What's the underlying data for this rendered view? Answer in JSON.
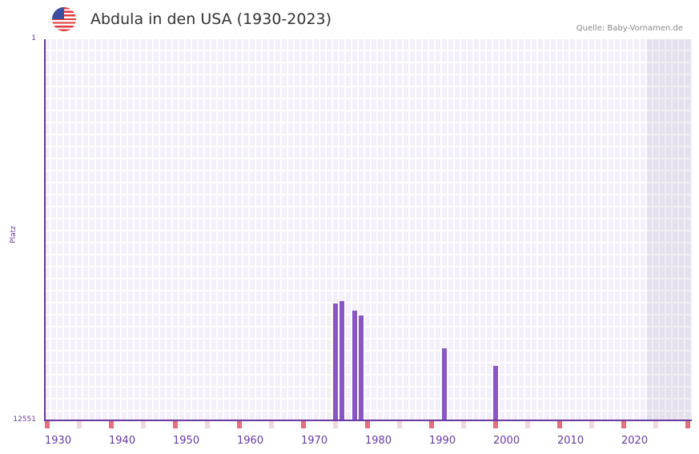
{
  "header": {
    "title": "Abdula in den USA (1930-2023)",
    "source": "Quelle: Baby-Vornamen.de",
    "flag_icon": "usa-flag-icon"
  },
  "colors": {
    "bar": "#8a55c6",
    "axis": "#6a3aa0",
    "decade_marker": "#e0707a",
    "half_decade_marker": "#f3d7e0",
    "grid_bg": "#f3effb"
  },
  "chart_data": {
    "type": "bar",
    "title": "Abdula in den USA (1930-2023)",
    "xlabel": "",
    "ylabel": "Platz",
    "y_inverted": true,
    "ylim": [
      12551,
      1
    ],
    "yticks": [
      "1",
      "12551"
    ],
    "xticks": [
      "1930",
      "1940",
      "1950",
      "1960",
      "1970",
      "1980",
      "1990",
      "2000",
      "2010",
      "2020"
    ],
    "x_range": [
      1928,
      2028
    ],
    "grid": true,
    "categories": [
      "1973",
      "1974",
      "1976",
      "1977",
      "1990",
      "1998"
    ],
    "values": [
      8700,
      8620,
      8940,
      9100,
      10180,
      10760
    ],
    "series": [
      {
        "name": "Platz",
        "points": [
          {
            "year": 1973,
            "rank": 8700
          },
          {
            "year": 1974,
            "rank": 8620
          },
          {
            "year": 1976,
            "rank": 8940
          },
          {
            "year": 1977,
            "rank": 9100
          },
          {
            "year": 1990,
            "rank": 10180
          },
          {
            "year": 1998,
            "rank": 10760
          }
        ]
      }
    ]
  }
}
